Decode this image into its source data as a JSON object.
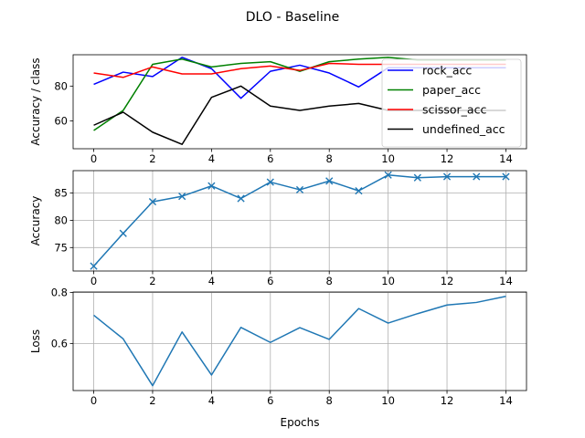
{
  "suptitle": "DLO - Baseline",
  "colors": {
    "rock_acc": "#0000ff",
    "paper_acc": "#008000",
    "scissor_acc": "#ff0000",
    "undefined_acc": "#000000",
    "line": "#1f77b4",
    "grid": "#b0b0b0"
  },
  "chart_data": [
    {
      "type": "line",
      "ylabel": "Accuracy / class",
      "x": [
        0,
        1,
        2,
        3,
        4,
        5,
        6,
        7,
        8,
        9,
        10,
        11,
        12,
        13,
        14
      ],
      "xticks": [
        0,
        2,
        4,
        6,
        8,
        10,
        12,
        14
      ],
      "yticks": [
        60,
        80
      ],
      "ylim": [
        44,
        98
      ],
      "grid": false,
      "legend": "right",
      "series": [
        {
          "name": "rock_acc",
          "color": "#0000ff",
          "values": [
            81,
            88,
            85.5,
            96.5,
            90,
            73,
            88.5,
            92,
            87.5,
            79.5,
            90.5,
            90.5,
            90.5,
            90.5,
            90.5
          ]
        },
        {
          "name": "paper_acc",
          "color": "#008000",
          "values": [
            54.5,
            66,
            92.5,
            95.5,
            91,
            93,
            94,
            88.5,
            94,
            95.5,
            96.5,
            95,
            95,
            95,
            95
          ]
        },
        {
          "name": "scissor_acc",
          "color": "#ff0000",
          "values": [
            87.5,
            85,
            91,
            87,
            87,
            90,
            91.5,
            89,
            93,
            92.5,
            92.5,
            92.5,
            92.5,
            92.5,
            92.5
          ]
        },
        {
          "name": "undefined_acc",
          "color": "#000000",
          "values": [
            57.5,
            65,
            53.5,
            46.5,
            73.5,
            80,
            68.5,
            66,
            68.5,
            70,
            66,
            66,
            66,
            66,
            66
          ]
        }
      ]
    },
    {
      "type": "line",
      "ylabel": "Accuracy",
      "x": [
        0,
        1,
        2,
        3,
        4,
        5,
        6,
        7,
        8,
        9,
        10,
        11,
        12,
        13,
        14
      ],
      "xticks": [
        0,
        2,
        4,
        6,
        8,
        10,
        12,
        14
      ],
      "yticks": [
        75,
        80,
        85
      ],
      "ylim": [
        70.7,
        89.1
      ],
      "grid": true,
      "marker": "x",
      "series": [
        {
          "color": "#1f77b4",
          "values": [
            71.6,
            77.6,
            83.4,
            84.4,
            86.3,
            84.0,
            87.0,
            85.6,
            87.2,
            85.4,
            88.3,
            87.8,
            88.0,
            88.0,
            88.0
          ]
        }
      ]
    },
    {
      "type": "line",
      "ylabel": "Loss",
      "xlabel": "Epochs",
      "x": [
        0,
        1,
        2,
        3,
        4,
        5,
        6,
        7,
        8,
        9,
        10,
        11,
        12,
        13,
        14
      ],
      "xticks": [
        0,
        2,
        4,
        6,
        8,
        10,
        12,
        14
      ],
      "yticks": [
        0.6,
        0.8
      ],
      "ylim": [
        0.415,
        0.802
      ],
      "grid": true,
      "series": [
        {
          "color": "#1f77b4",
          "values": [
            0.711,
            0.618,
            0.434,
            0.645,
            0.476,
            0.663,
            0.604,
            0.662,
            0.616,
            0.737,
            0.68,
            0.717,
            0.751,
            0.761,
            0.785
          ]
        }
      ]
    }
  ]
}
